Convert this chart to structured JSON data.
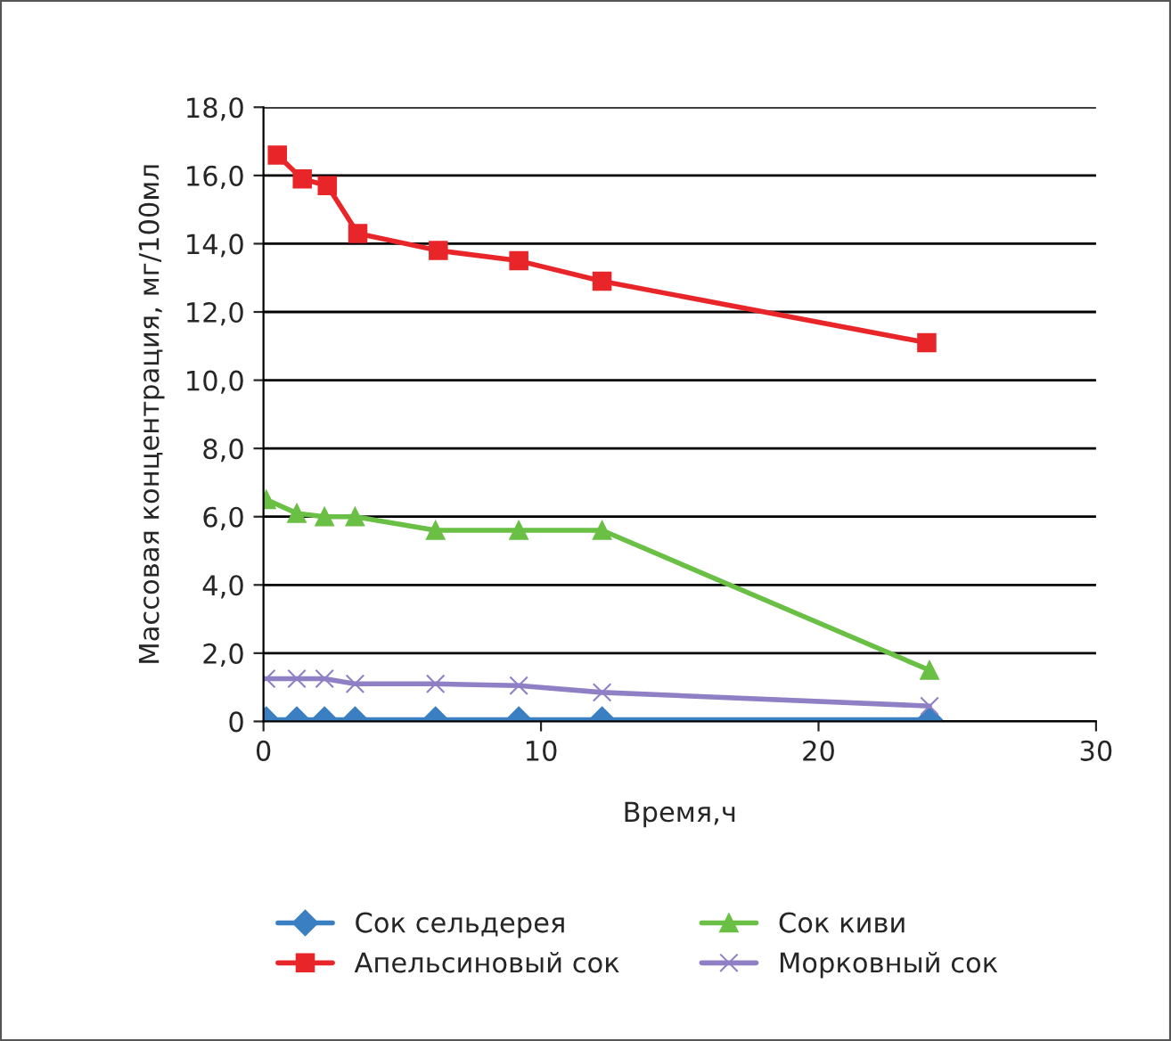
{
  "chart_data": {
    "type": "line",
    "xlabel": "Время,ч",
    "ylabel": "Массовая концентрация, мг/100мл",
    "xlim": [
      0,
      30
    ],
    "xticks": [
      0,
      10,
      20,
      30
    ],
    "ylim": [
      0,
      18
    ],
    "yticks": [
      0,
      {
        "value": 2,
        "label": "2,0"
      },
      {
        "value": 4,
        "label": "4,0"
      },
      {
        "value": 6,
        "label": "6,0"
      },
      {
        "value": 8,
        "label": "8,0"
      },
      {
        "value": 10,
        "label": "10,0"
      },
      {
        "value": 12,
        "label": "12,0"
      },
      {
        "value": 14,
        "label": "14,0"
      },
      {
        "value": 16,
        "label": "16,0"
      },
      {
        "value": 18,
        "label": "18,0"
      }
    ],
    "grid": "y",
    "legend": "bottom",
    "series": [
      {
        "name": "Сок сельдерея",
        "color": "#3a7fc1",
        "marker": "diamond",
        "x": [
          0.1,
          1.2,
          2.2,
          3.3,
          6.2,
          9.2,
          12.2,
          24
        ],
        "values": [
          0.05,
          0.05,
          0.05,
          0.05,
          0.05,
          0.05,
          0.05,
          0.05
        ]
      },
      {
        "name": "Апельсиновый сок",
        "color": "#e8262a",
        "marker": "square",
        "x": [
          0.5,
          1.4,
          2.3,
          3.4,
          6.3,
          9.2,
          12.2,
          23.9
        ],
        "values": [
          16.6,
          15.9,
          15.7,
          14.3,
          13.8,
          13.5,
          12.9,
          11.1
        ]
      },
      {
        "name": "Сок киви",
        "color": "#6abf45",
        "marker": "triangle",
        "x": [
          0.1,
          1.2,
          2.2,
          3.3,
          6.2,
          9.2,
          12.2,
          24
        ],
        "values": [
          6.5,
          6.1,
          6.0,
          6.0,
          5.6,
          5.6,
          5.6,
          1.5
        ]
      },
      {
        "name": "Морковный сок",
        "color": "#8f7fc4",
        "marker": "cross",
        "x": [
          0.1,
          1.2,
          2.2,
          3.3,
          6.2,
          9.2,
          12.2,
          24
        ],
        "values": [
          1.25,
          1.25,
          1.25,
          1.1,
          1.1,
          1.05,
          0.85,
          0.45
        ]
      }
    ]
  }
}
